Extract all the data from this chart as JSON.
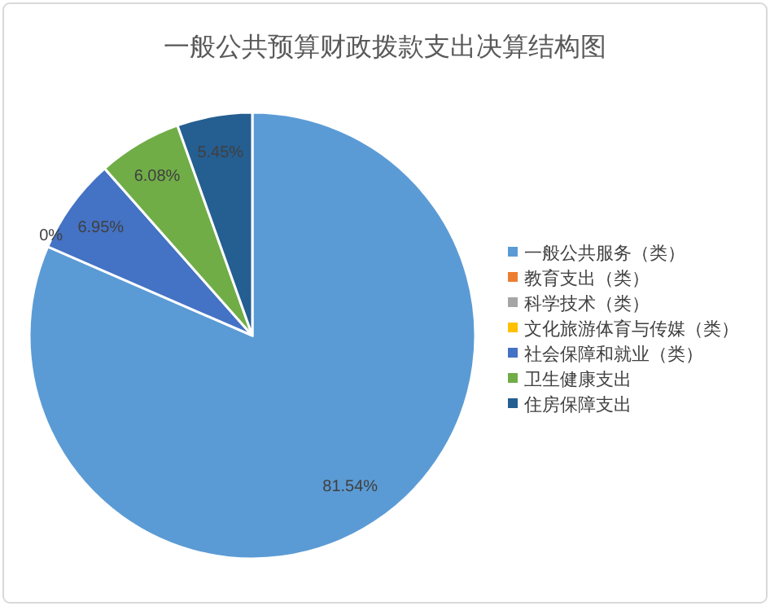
{
  "chart_data": {
    "type": "pie",
    "title": "一般公共预算财政拨款支出决算结构图",
    "categories": [
      "一般公共服务（类）",
      "教育支出（类）",
      "科学技术（类）",
      "文化旅游体育与传媒（类）",
      "社会保障和就业（类）",
      "卫生健康支出",
      "住房保障支出"
    ],
    "values": [
      81.54,
      0,
      0,
      0,
      6.95,
      6.08,
      5.45
    ],
    "colors": [
      "#5b9bd5",
      "#ed7d31",
      "#a5a5a5",
      "#ffc000",
      "#4472c4",
      "#70ad47",
      "#255e91"
    ],
    "value_labels": [
      "81.54%",
      "0%",
      null,
      null,
      "6.95%",
      "6.08%",
      "5.45%"
    ],
    "legend": "right"
  }
}
